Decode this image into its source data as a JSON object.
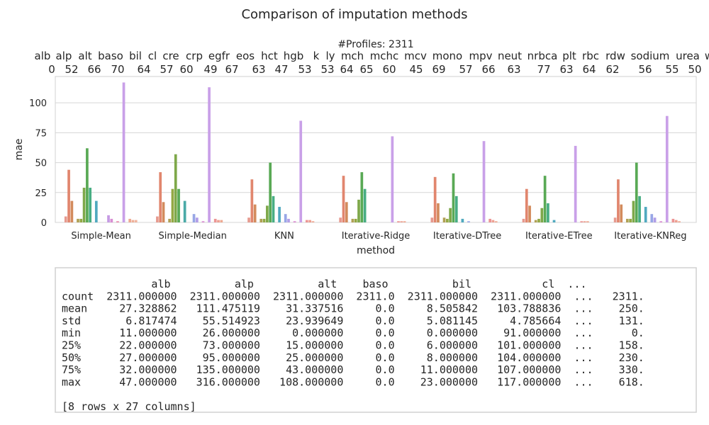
{
  "chart_data": {
    "type": "bar",
    "title": "Comparison of imputation methods",
    "subtitle": "#Profiles: 2311",
    "xlabel": "method",
    "ylabel": "mae",
    "ylim": [
      0,
      122
    ],
    "yticks": [
      0,
      25,
      50,
      75,
      100
    ],
    "grid": true,
    "categories": [
      "Simple-Mean",
      "Simple-Median",
      "KNN",
      "Iterative-Ridge",
      "Iterative-DTree",
      "Iterative-ETree",
      "Iterative-KNReg"
    ],
    "top_labels": [
      {
        "name": "alb",
        "count": "0"
      },
      {
        "name": "alp",
        "count": "52"
      },
      {
        "name": "alt",
        "count": "66"
      },
      {
        "name": "baso",
        "count": "70"
      },
      {
        "name": "bil",
        "count": "64"
      },
      {
        "name": "cl",
        "count": "57"
      },
      {
        "name": "cre",
        "count": "60"
      },
      {
        "name": "crp",
        "count": "49"
      },
      {
        "name": "egfr",
        "count": "67"
      },
      {
        "name": "eos",
        "count": "63"
      },
      {
        "name": "hct",
        "count": "47"
      },
      {
        "name": "hgb",
        "count": "53"
      },
      {
        "name": "k",
        "count": "53"
      },
      {
        "name": "ly",
        "count": "64"
      },
      {
        "name": "mch",
        "count": "65"
      },
      {
        "name": "mchc",
        "count": "60"
      },
      {
        "name": "mcv",
        "count": "45"
      },
      {
        "name": "mono",
        "count": "69"
      },
      {
        "name": "mpv",
        "count": "57"
      },
      {
        "name": "neut",
        "count": "66"
      },
      {
        "name": "nrbca",
        "count": "63"
      },
      {
        "name": "plt",
        "count": "77"
      },
      {
        "name": "rbc",
        "count": "63"
      },
      {
        "name": "rdw",
        "count": "64"
      },
      {
        "name": "sodium",
        "count": "62"
      },
      {
        "name": "urea",
        "count": "56"
      },
      {
        "name": "w",
        "count": "55"
      },
      {
        "name": "",
        "count": "50"
      }
    ],
    "bars_per_group": 24,
    "series_colors": [
      "#e69a8f",
      "#e1866e",
      "#d38b5d",
      "#c59a58",
      "#b0a155",
      "#93a844",
      "#7ea84a",
      "#59a955",
      "#48ad83",
      "#4aaaa7",
      "#50a9bf",
      "#6ba9d8",
      "#98a6e6",
      "#b19ee7",
      "#c69ae4",
      "#d98ed3",
      "#e387c0",
      "#e88aad",
      "#ea8f9d",
      "#ec9594",
      "#eda091",
      "#eea992",
      "#eeb098",
      "#f0b5a0"
    ],
    "group_values": [
      [
        5,
        44,
        18,
        0,
        3,
        3,
        29,
        62,
        29,
        0,
        18,
        0,
        0,
        0,
        6,
        3,
        0,
        1,
        0,
        117,
        0,
        3,
        2,
        2
      ],
      [
        5,
        42,
        17,
        0,
        3,
        28,
        57,
        28,
        0,
        18,
        0,
        0,
        7,
        4,
        0,
        1,
        0,
        113,
        0,
        3,
        2,
        2,
        0,
        0
      ],
      [
        4,
        36,
        15,
        0,
        3,
        3,
        14,
        50,
        22,
        0,
        13,
        0,
        7,
        3,
        0,
        1,
        0,
        85,
        0,
        2,
        2,
        1,
        0,
        0
      ],
      [
        4,
        39,
        17,
        0,
        3,
        3,
        19,
        42,
        28,
        0,
        0,
        0,
        0,
        0,
        0,
        0,
        0,
        72,
        0,
        1,
        1,
        1,
        0,
        0
      ],
      [
        4,
        38,
        16,
        0,
        4,
        3,
        12,
        41,
        22,
        0,
        3,
        0,
        1,
        0,
        0,
        0,
        0,
        68,
        0,
        3,
        2,
        1,
        0,
        0
      ],
      [
        3,
        28,
        14,
        0,
        2,
        3,
        12,
        39,
        16,
        0,
        2,
        0,
        0,
        0,
        0,
        0,
        0,
        64,
        0,
        1,
        1,
        1,
        0,
        0
      ],
      [
        4,
        36,
        15,
        0,
        3,
        3,
        18,
        50,
        22,
        0,
        13,
        0,
        7,
        4,
        0,
        1,
        0,
        89,
        0,
        3,
        2,
        1,
        0,
        0
      ]
    ]
  },
  "table": {
    "lines": [
      "              alb          alp          alt    baso          bil           cl  ...",
      "count  2311.000000  2311.000000  2311.000000  2311.0  2311.000000  2311.000000  ...   2311.",
      "mean     27.328862   111.475119    31.337516     0.0     8.505842   103.788836  ...    250.",
      "std       6.817474    55.514923    23.939649     0.0     5.081145     4.785664  ...    131.",
      "min      11.000000    26.000000     0.000000     0.0     0.000000    91.000000  ...      0.",
      "25%      22.000000    73.000000    15.000000     0.0     6.000000   101.000000  ...    158.",
      "50%      27.000000    95.000000    25.000000     0.0     8.000000   104.000000  ...    230.",
      "75%      32.000000   135.000000    43.000000     0.0    11.000000   107.000000  ...    330.",
      "max      47.000000   316.000000   108.000000     0.0    23.000000   117.000000  ...    618.",
      "",
      "[8 rows x 27 columns]"
    ]
  }
}
